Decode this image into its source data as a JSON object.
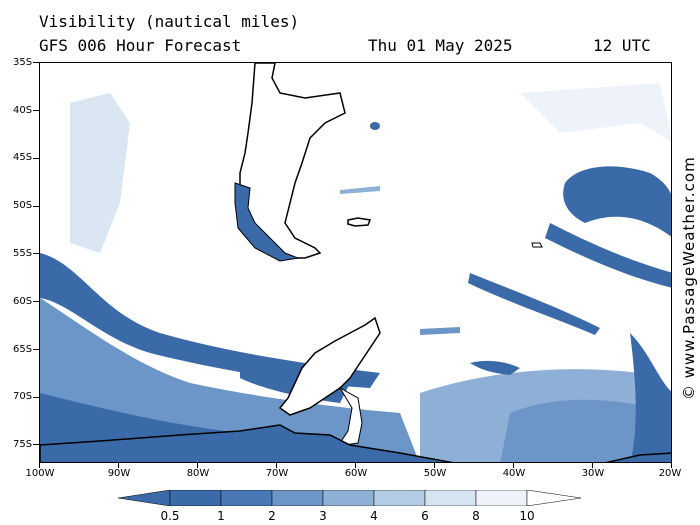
{
  "header": {
    "title": "Visibility (nautical miles)",
    "model": "GFS 006 Hour Forecast",
    "date": "Thu 01 May 2025",
    "time": "12 UTC"
  },
  "copyright": "© www.PassageWeather.com",
  "axes": {
    "latitudes": [
      "35S",
      "40S",
      "45S",
      "50S",
      "55S",
      "60S",
      "65S",
      "70S",
      "75S"
    ],
    "longitudes": [
      "100W",
      "90W",
      "80W",
      "70W",
      "60W",
      "50W",
      "40W",
      "30W",
      "20W"
    ]
  },
  "colorbar": {
    "labels": [
      "0.5",
      "1",
      "2",
      "3",
      "4",
      "6",
      "8",
      "10"
    ],
    "colors": [
      "#3a6aa8",
      "#4a78b6",
      "#6c95c8",
      "#8fb0d6",
      "#b3cbe4",
      "#d6e3f1",
      "#eef3f9",
      "#ffffff"
    ]
  },
  "colors": {
    "low_vis": "#3a6aa8",
    "mid_vis": "#8fb0d6",
    "high_vis": "#d6e3f1"
  }
}
